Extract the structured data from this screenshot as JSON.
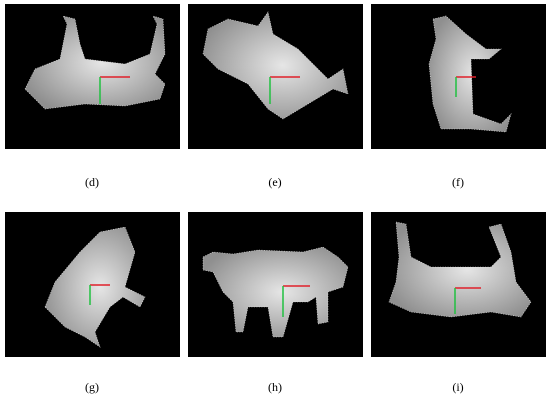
{
  "panels": [
    {
      "label": "(d)"
    },
    {
      "label": "(e)"
    },
    {
      "label": "(f)"
    },
    {
      "label": "(g)"
    },
    {
      "label": "(h)"
    },
    {
      "label": "(i)"
    }
  ]
}
